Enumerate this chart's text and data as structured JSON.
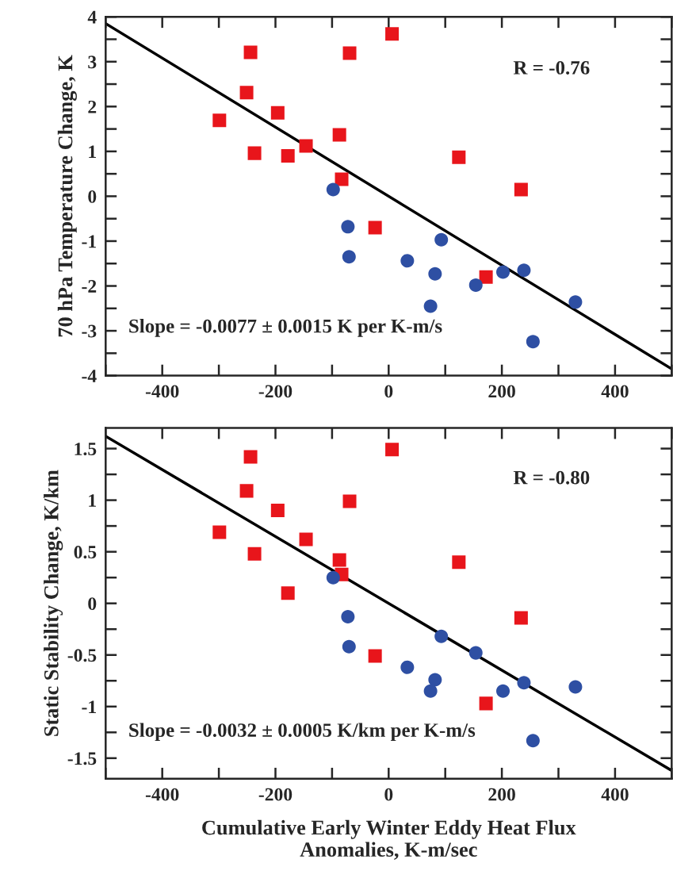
{
  "chart_data": [
    {
      "type": "scatter",
      "ylabel": "70 hPa Temperature Change, K",
      "xlim": [
        -500,
        500
      ],
      "ylim": [
        -4,
        4
      ],
      "xticks": [
        {
          "value": -500,
          "label": null
        },
        -400,
        {
          "value": -300,
          "label": null
        },
        -200,
        {
          "value": -100,
          "label": null
        },
        0,
        {
          "value": 100,
          "label": null
        },
        200,
        {
          "value": 300,
          "label": null
        },
        400,
        {
          "value": 500,
          "label": null
        }
      ],
      "yticks": [
        -4,
        {
          "value": -3.5,
          "label": null
        },
        -3,
        {
          "value": -2.5,
          "label": null
        },
        -2,
        {
          "value": -1.5,
          "label": null
        },
        -1,
        {
          "value": -0.5,
          "label": null
        },
        0,
        {
          "value": 0.5,
          "label": null
        },
        1,
        {
          "value": 1.5,
          "label": null
        },
        2,
        {
          "value": 2.5,
          "label": null
        },
        3,
        {
          "value": 3.5,
          "label": null
        },
        4
      ],
      "series": [
        {
          "marker": "square",
          "color": "#e8151b",
          "x": [
            -299,
            -244,
            -251,
            -237,
            -196,
            -178,
            -146,
            -87,
            -83,
            -69,
            6,
            -24,
            124,
            234,
            172
          ],
          "values": [
            1.69,
            3.21,
            2.31,
            0.96,
            1.86,
            0.9,
            1.12,
            1.37,
            0.38,
            3.19,
            3.62,
            -0.7,
            0.87,
            0.15,
            -1.8
          ]
        },
        {
          "marker": "circle",
          "color": "#2e4fa3",
          "x": [
            -98,
            -72,
            -70,
            33,
            93,
            82,
            74,
            154,
            202,
            239,
            330,
            255
          ],
          "values": [
            0.15,
            -0.68,
            -1.35,
            -1.44,
            -0.97,
            -1.73,
            -2.45,
            -1.98,
            -1.69,
            -1.65,
            -2.36,
            -3.24
          ]
        },
        {
          "type": "line",
          "color": "#000000",
          "x": [
            -500,
            500
          ],
          "values": [
            3.85,
            -3.85
          ]
        }
      ],
      "annotations": [
        "R = -0.76",
        "Slope = -0.0077 ± 0.0015 K per K-m/s"
      ],
      "legend": false,
      "grid": false
    },
    {
      "type": "scatter",
      "xlabel": "Cumulative Early Winter Eddy Heat Flux\nAnomalies, K-m/sec",
      "ylabel": "Static Stability Change, K/km",
      "xlim": [
        -500,
        500
      ],
      "ylim": [
        -1.7,
        1.7
      ],
      "xticks": [
        {
          "value": -500,
          "label": null
        },
        -400,
        {
          "value": -300,
          "label": null
        },
        -200,
        {
          "value": -100,
          "label": null
        },
        0,
        {
          "value": 100,
          "label": null
        },
        200,
        {
          "value": 300,
          "label": null
        },
        400,
        {
          "value": 500,
          "label": null
        }
      ],
      "yticks": [
        -1.5,
        {
          "value": -1.25,
          "label": null
        },
        -1,
        {
          "value": -0.75,
          "label": null
        },
        -0.5,
        {
          "value": -0.25,
          "label": null
        },
        0,
        {
          "value": 0.25,
          "label": null
        },
        0.5,
        {
          "value": 0.75,
          "label": null
        },
        1,
        {
          "value": 1.25,
          "label": null
        },
        1.5
      ],
      "series": [
        {
          "marker": "square",
          "color": "#e8151b",
          "x": [
            -299,
            -244,
            -251,
            -237,
            -196,
            -178,
            -146,
            -87,
            -83,
            -69,
            6,
            -24,
            124,
            234,
            172
          ],
          "values": [
            0.69,
            1.42,
            1.09,
            0.48,
            0.9,
            0.1,
            0.62,
            0.42,
            0.28,
            0.99,
            1.49,
            -0.51,
            0.4,
            -0.14,
            -0.97
          ]
        },
        {
          "marker": "circle",
          "color": "#2e4fa3",
          "x": [
            -98,
            -72,
            -70,
            33,
            93,
            82,
            74,
            154,
            202,
            239,
            330,
            255
          ],
          "values": [
            0.25,
            -0.13,
            -0.42,
            -0.62,
            -0.32,
            -0.74,
            -0.85,
            -0.48,
            -0.85,
            -0.77,
            -0.81,
            -1.33
          ]
        },
        {
          "type": "line",
          "color": "#000000",
          "x": [
            -500,
            500
          ],
          "values": [
            1.62,
            -1.62
          ]
        }
      ],
      "annotations": [
        "R = -0.80",
        "Slope = -0.0032 ± 0.0005 K/km per K-m/s"
      ],
      "legend": false,
      "grid": false
    }
  ]
}
